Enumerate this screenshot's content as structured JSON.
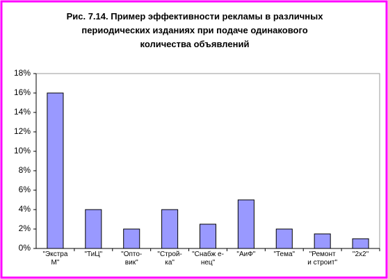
{
  "chart_data": {
    "type": "bar",
    "title": "Рис. 7.14. Пример эффективности рекламы в различных\nпериодических изданиях при подаче одинакового\nколичества объявлений",
    "categories": [
      "\"Экстра\nМ\"",
      "\"ТиЦ\"",
      "\"Опто-\nвик\"",
      "\"Строй-\nка\"",
      "\"Снабж е-\nнец\"",
      "\"АиФ\"",
      "\"Тема\"",
      "\"Ремонт\nи строит\"",
      "\"2х2\""
    ],
    "values": [
      16,
      4,
      2,
      4,
      2.5,
      5,
      2,
      1.5,
      1
    ],
    "color": "#9999ff",
    "ylim": [
      0,
      18
    ],
    "yticks": [
      {
        "value": 0,
        "label": "0%"
      },
      {
        "value": 2,
        "label": "2%"
      },
      {
        "value": 4,
        "label": "4%"
      },
      {
        "value": 6,
        "label": "6%"
      },
      {
        "value": 8,
        "label": "8%"
      },
      {
        "value": 10,
        "label": "10%"
      },
      {
        "value": 12,
        "label": "12%"
      },
      {
        "value": 14,
        "label": "14%"
      },
      {
        "value": 16,
        "label": "16%"
      },
      {
        "value": 18,
        "label": "18%"
      }
    ],
    "grid": false
  }
}
